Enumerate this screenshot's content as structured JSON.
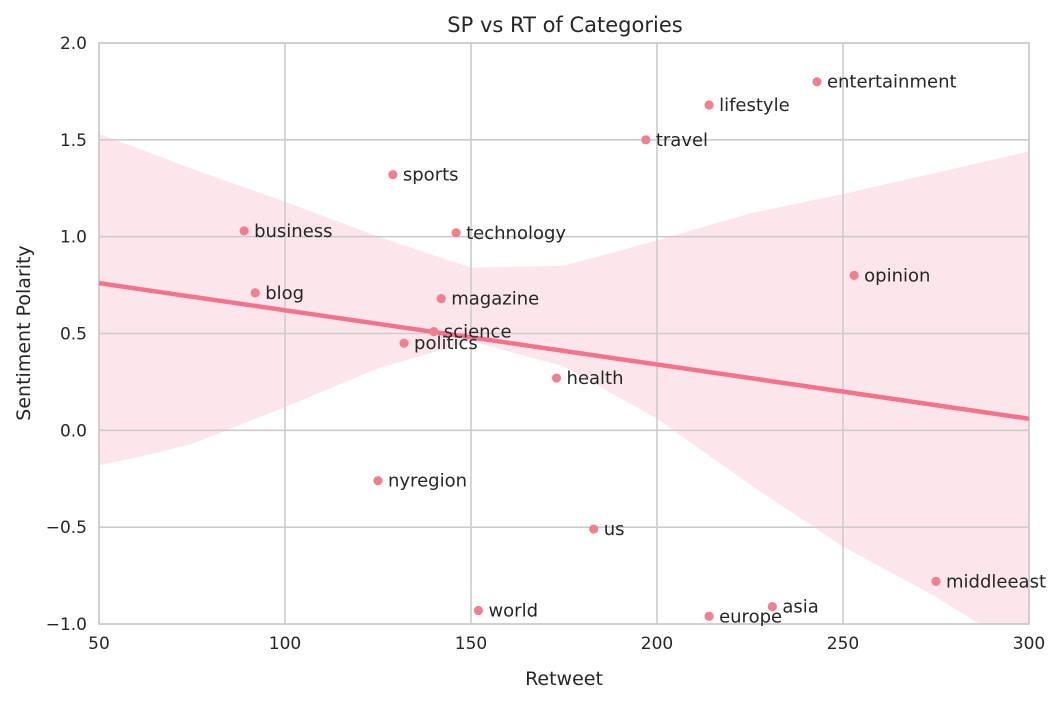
{
  "chart_data": {
    "type": "scatter",
    "title": "SP vs RT of Categories",
    "xlabel": "Retweet",
    "ylabel": "Sentiment Polarity",
    "xlim": [
      50,
      300
    ],
    "ylim": [
      -1.0,
      2.0
    ],
    "xticks": [
      50,
      100,
      150,
      200,
      250,
      300
    ],
    "yticks": [
      2.0,
      1.5,
      1.0,
      0.5,
      0.0,
      -0.5,
      -1.0
    ],
    "xtick_labels": [
      "50",
      "100",
      "150",
      "200",
      "250",
      "300"
    ],
    "ytick_labels": [
      "2.0",
      "1.5",
      "1.0",
      "0.5",
      "0.0",
      "−0.5",
      "−1.0"
    ],
    "grid": true,
    "colors": {
      "point": "#f07f90",
      "line": "#f2738b",
      "band": "#fce6eb",
      "grid": "#cccccc"
    },
    "regression": {
      "x": [
        50,
        300
      ],
      "y": [
        0.76,
        0.06
      ]
    },
    "confidence_band": {
      "x": [
        50,
        60,
        75,
        100,
        125,
        150,
        175,
        200,
        225,
        250,
        275,
        300
      ],
      "upper": [
        1.53,
        1.46,
        1.35,
        1.18,
        1.0,
        0.84,
        0.85,
        0.98,
        1.12,
        1.22,
        1.33,
        1.44
      ],
      "lower": [
        -0.18,
        -0.14,
        -0.07,
        0.12,
        0.32,
        0.46,
        0.33,
        0.06,
        -0.28,
        -0.6,
        -0.86,
        -1.16
      ]
    },
    "points": [
      {
        "label": "entertainment",
        "x": 243,
        "y": 1.8
      },
      {
        "label": "lifestyle",
        "x": 214,
        "y": 1.68
      },
      {
        "label": "travel",
        "x": 197,
        "y": 1.5
      },
      {
        "label": "sports",
        "x": 129,
        "y": 1.32
      },
      {
        "label": "business",
        "x": 89,
        "y": 1.03
      },
      {
        "label": "technology",
        "x": 146,
        "y": 1.02
      },
      {
        "label": "opinion",
        "x": 253,
        "y": 0.8
      },
      {
        "label": "blog",
        "x": 92,
        "y": 0.71
      },
      {
        "label": "magazine",
        "x": 142,
        "y": 0.68
      },
      {
        "label": "science",
        "x": 140,
        "y": 0.51
      },
      {
        "label": "politics",
        "x": 132,
        "y": 0.45
      },
      {
        "label": "health",
        "x": 173,
        "y": 0.27
      },
      {
        "label": "nyregion",
        "x": 125,
        "y": -0.26
      },
      {
        "label": "us",
        "x": 183,
        "y": -0.51
      },
      {
        "label": "middleeast",
        "x": 275,
        "y": -0.78
      },
      {
        "label": "asia",
        "x": 231,
        "y": -0.91
      },
      {
        "label": "world",
        "x": 152,
        "y": -0.93
      },
      {
        "label": "europe",
        "x": 214,
        "y": -0.96
      }
    ]
  }
}
